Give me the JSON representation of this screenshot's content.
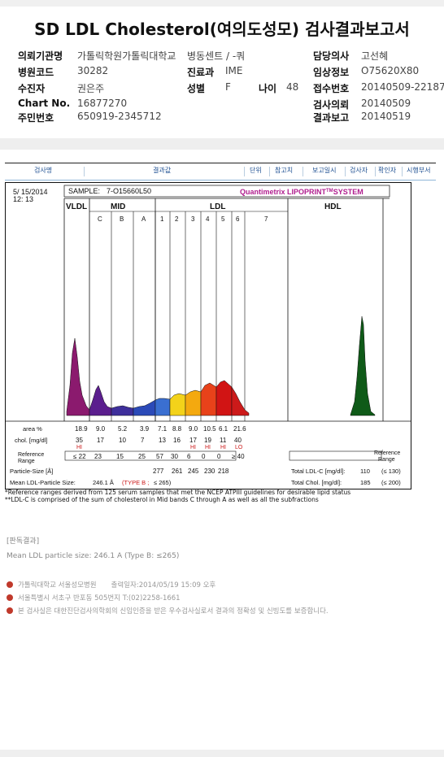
{
  "report": {
    "title": "SD LDL Cholesterol(여의도성모) 검사결과보고서"
  },
  "header": {
    "institution_label": "의뢰기관명",
    "institution": "가톨릭학원가톨릭대학교",
    "ward_label": "병동센트 / -쿼",
    "hospital_code_label": "병원코드",
    "hospital_code": "30282",
    "dept_label": "진료과",
    "dept": "IME",
    "patient_label": "수진자",
    "patient": "권은주",
    "sex_label": "성별",
    "sex": "F",
    "age_label": "나이",
    "age": "48",
    "chart_no_label": "Chart No.",
    "chart_no": "16877270",
    "resident_id_label": "주민번호",
    "resident_id": "650919-2345712",
    "doctor_label": "담당의사",
    "doctor": "고선혜",
    "clinical_label": "임상정보",
    "clinical": "O75620X80",
    "receipt_label": "접수번호",
    "receipt": "20140509-22187",
    "request_label": "검사의뢰",
    "request": "20140509",
    "result_label": "결과보고",
    "result": "20140519"
  },
  "columns": [
    "검사명",
    "결과값",
    "단위",
    "참고치",
    "보고일시",
    "검사자",
    "확인자",
    "시행부서"
  ],
  "chart_data": {
    "type": "area",
    "brand": "Quantimetrix LIPOPRINT",
    "brand_suffix": "SYSTEM",
    "date": "5/ 15/2014",
    "time": "12: 13",
    "sample_label": "SAMPLE:",
    "sample": "7-O15660L50",
    "groups": [
      "VLDL",
      "MID",
      "LDL",
      "HDL"
    ],
    "bands": [
      "C",
      "B",
      "A",
      "1",
      "2",
      "3",
      "4",
      "5",
      "6",
      "7"
    ],
    "area_label": "area %",
    "area_values": [
      "18.9",
      "9.0",
      "5.2",
      "3.9",
      "7.1",
      "8.8",
      "9.0",
      "10.5",
      "6.1",
      "21.6"
    ],
    "chol_label": "chol. [mg/dl]",
    "chol_values": [
      "35",
      "17",
      "10",
      "7",
      "13",
      "16",
      "17",
      "19",
      "11",
      "40"
    ],
    "chol_flags": [
      "HI",
      "",
      "",
      "",
      "",
      "",
      "HI",
      "HI",
      "HI",
      "LO"
    ],
    "ref_label": "Reference Range",
    "ref_values": [
      "≤ 22",
      "23",
      "15",
      "25",
      "57",
      "30",
      "6",
      "0",
      "0",
      "≥ 40"
    ],
    "size_label": "Particle-Size [Å]",
    "size_values": [
      "277",
      "261",
      "245",
      "230",
      "218"
    ],
    "total_ldl_label": "Total LDL-C [mg/dl]:",
    "total_ldl": "110",
    "total_ldl_ref": "(≤ 130)",
    "total_chol_label": "Total Chol. [mg/dl]:",
    "total_chol": "185",
    "total_chol_ref": "(≤ 200)",
    "mean_label": "Mean LDL-Particle Size:",
    "mean_value": "246.1 Å",
    "type_label": "(TYPE B ;",
    "type_ref": "≤ 265)",
    "band_colors": {
      "vldl": "#8b1a6e",
      "c": "#5b1e8e",
      "b": "#3e2f9b",
      "a": "#2b4ab8",
      "one": "#3a6fd1",
      "two": "#f3d21a",
      "three": "#f4a90f",
      "four": "#e8421a",
      "five": "#d11414",
      "six": "#cc1a1a",
      "hdl": "#0f5a18"
    }
  },
  "notes": {
    "line1": "*Reference ranges derived from 125 serum samples that met the NCEP ATPIII guidelines for desirable lipid status",
    "line2": "**LDL-C is comprised of the sum of cholesterol in Mid bands C through A as well as all the subfractions"
  },
  "interpretation": {
    "heading": "[판독결과]",
    "text": "Mean LDL particle size: 246.1 A (Type B: ≤265)"
  },
  "footer": {
    "hospital": "가톨릭대학교 서울성모병원",
    "printed": "출력일자:2014/05/19 15:09 오후",
    "address": "서울특별시 서초구 반포동 505번지 T:(02)2258-1661",
    "certification": "본 검사실은 대한진단검사의학회의 신임인증을 받은 우수검사실로서 결과의 정확성 및 신빙도를 보증합니다."
  }
}
